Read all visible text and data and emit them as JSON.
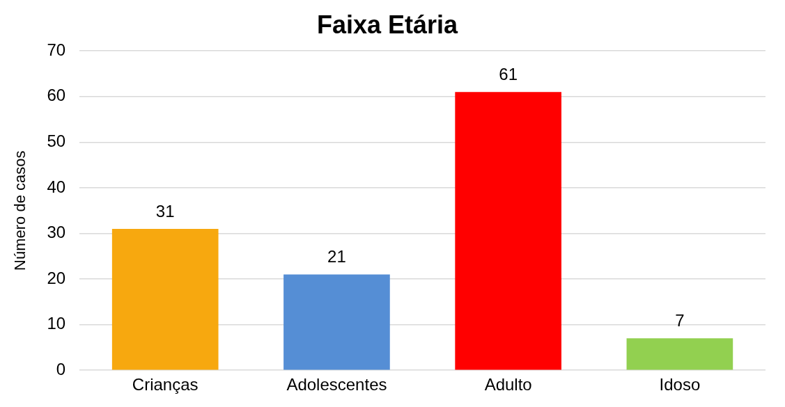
{
  "chart_data": {
    "type": "bar",
    "title": "Faixa Etária",
    "ylabel": "Número de casos",
    "categories": [
      "Crianças",
      "Adolescentes",
      "Adulto",
      "Idoso"
    ],
    "values": [
      31,
      21,
      61,
      7
    ],
    "colors": [
      "#f7a80f",
      "#558ed5",
      "#ff0000",
      "#92d050"
    ],
    "ylim": [
      0,
      70
    ],
    "yticks": [
      0,
      10,
      20,
      30,
      40,
      50,
      60,
      70
    ],
    "grid": "y",
    "data_labels": true
  }
}
